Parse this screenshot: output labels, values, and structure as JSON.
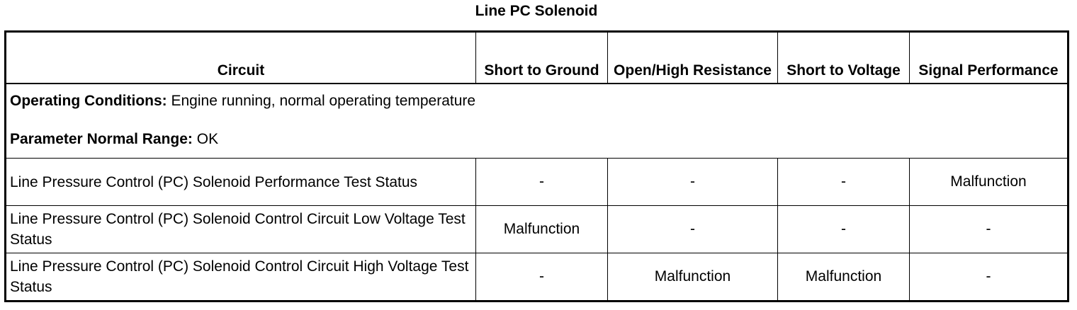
{
  "title": "Line PC Solenoid",
  "headers": {
    "circuit": "Circuit",
    "short_ground": "Short to Ground",
    "open_high": "Open/High Resistance",
    "short_voltage": "Short to Voltage",
    "signal": "Signal Performance"
  },
  "conditions": {
    "operating_label": "Operating Conditions:",
    "operating_value": " Engine running, normal operating temperature",
    "range_label": "Parameter Normal Range:",
    "range_value": " OK"
  },
  "rows": [
    {
      "circuit": "Line Pressure Control (PC) Solenoid Performance Test Status",
      "short_ground": "-",
      "open_high": "-",
      "short_voltage": "-",
      "signal": "Malfunction"
    },
    {
      "circuit": "Line Pressure Control (PC) Solenoid Control Circuit Low Voltage Test Status",
      "short_ground": "Malfunction",
      "open_high": "-",
      "short_voltage": "-",
      "signal": "-"
    },
    {
      "circuit": "Line Pressure Control (PC) Solenoid Control Circuit High Voltage Test Status",
      "short_ground": "-",
      "open_high": "Malfunction",
      "short_voltage": "Malfunction",
      "signal": "-"
    }
  ]
}
